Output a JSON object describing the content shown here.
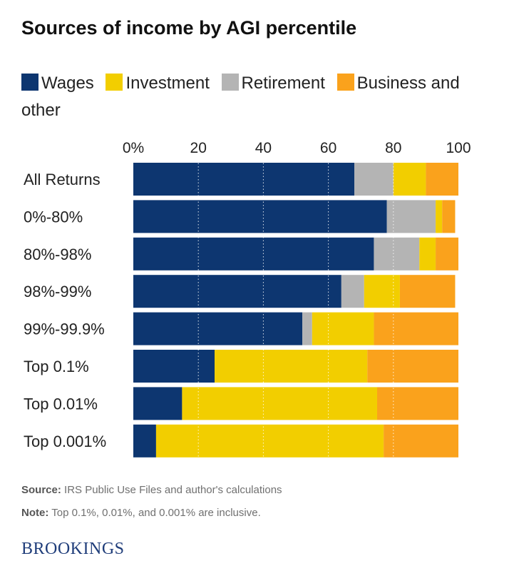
{
  "footer": {
    "source_label": "Source:",
    "source_text": " IRS Public Use Files and author's calculations",
    "note_label": "Note:",
    "note_text": " Top 0.1%, 0.01%, and 0.001% are inclusive."
  },
  "brand": "BROOKINGS",
  "colors": {
    "Wages": "#0d3670",
    "Investment": "#f2ce00",
    "Retirement": "#b4b4b4",
    "Business and other": "#faa21c"
  },
  "chart_data": {
    "type": "bar",
    "orientation": "horizontal",
    "stacked": true,
    "title": "Sources of income by AGI percentile",
    "xlabel": "",
    "ylabel": "",
    "xlim": [
      0,
      100
    ],
    "x_ticks": [
      "0%",
      "20",
      "40",
      "60",
      "80",
      "100"
    ],
    "grid": true,
    "legend_position": "top",
    "categories": [
      "All Returns",
      "0%-80%",
      "80%-98%",
      "98%-99%",
      "99%-99.9%",
      "Top 0.1%",
      "Top 0.01%",
      "Top 0.001%"
    ],
    "series": [
      {
        "name": "Wages",
        "values": [
          68,
          78,
          74,
          64,
          52,
          25,
          15,
          7
        ]
      },
      {
        "name": "Retirement",
        "values": [
          12,
          15,
          14,
          7,
          3,
          0,
          0,
          0
        ]
      },
      {
        "name": "Investment",
        "values": [
          10,
          2,
          5,
          11,
          19,
          47,
          60,
          70
        ]
      },
      {
        "name": "Business and other",
        "values": [
          10,
          4,
          7,
          17,
          26,
          28,
          25,
          23
        ]
      }
    ]
  }
}
